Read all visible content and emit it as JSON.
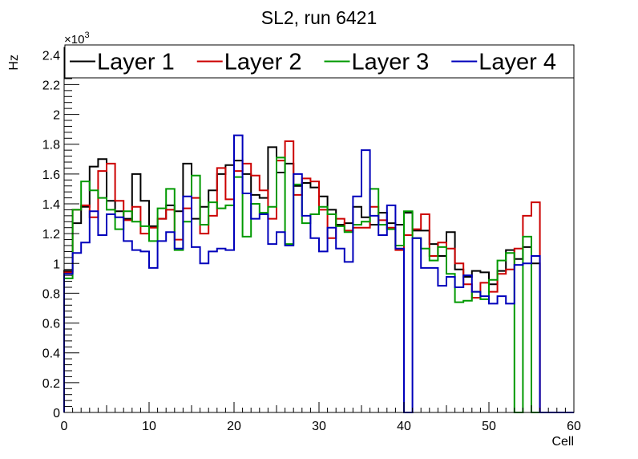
{
  "chart_data": {
    "type": "line",
    "title": "SL2, run 6421",
    "xlabel": "Cell",
    "ylabel": "Hz",
    "y_multiplier_label": "×10",
    "y_multiplier_exp": "3",
    "xlim": [
      0,
      60
    ],
    "ylim": [
      0,
      2.45
    ],
    "x_ticks": [
      0,
      10,
      20,
      30,
      40,
      50,
      60
    ],
    "y_ticks": [
      0,
      0.2,
      0.4,
      0.6,
      0.8,
      1,
      1.2,
      1.4,
      1.6,
      1.8,
      2,
      2.2,
      2.4
    ],
    "bin_start": 0,
    "bin_width": 1,
    "legend_position": "top",
    "series": [
      {
        "name": "Layer 1",
        "color": "#000000",
        "values": [
          0.95,
          1.27,
          1.38,
          1.65,
          1.7,
          1.42,
          1.35,
          1.3,
          1.6,
          1.42,
          1.25,
          1.3,
          1.39,
          1.35,
          1.67,
          1.3,
          1.38,
          1.49,
          1.6,
          1.66,
          1.69,
          1.6,
          1.46,
          1.44,
          1.78,
          1.61,
          1.67,
          1.52,
          1.54,
          1.51,
          1.45,
          1.36,
          1.26,
          1.27,
          1.38,
          1.31,
          1.26,
          1.34,
          1.27,
          1.26,
          1.34,
          1.22,
          1.22,
          1.13,
          1.05,
          1.21,
          0.96,
          0.91,
          0.95,
          0.94,
          0.86,
          0.95,
          1.09,
          1.03,
          1.11,
          1.0,
          0.0,
          0.0,
          0.0,
          0.0
        ]
      },
      {
        "name": "Layer 2",
        "color": "#cc0000",
        "values": [
          0.94,
          1.36,
          1.39,
          1.31,
          1.62,
          1.67,
          1.42,
          1.29,
          1.38,
          1.2,
          1.24,
          1.3,
          1.36,
          1.16,
          1.37,
          1.44,
          1.2,
          1.32,
          1.64,
          1.43,
          1.62,
          1.67,
          1.59,
          1.49,
          1.3,
          1.69,
          1.82,
          1.46,
          1.57,
          1.55,
          1.36,
          1.17,
          1.3,
          1.22,
          1.24,
          1.24,
          1.38,
          1.29,
          1.24,
          1.09,
          1.19,
          1.23,
          1.33,
          1.05,
          1.14,
          1.1,
          1.0,
          0.86,
          0.77,
          0.87,
          0.81,
          0.93,
          0.96,
          1.1,
          1.32,
          1.41,
          0.0,
          0.0,
          0.0,
          0.0
        ]
      },
      {
        "name": "Layer 3",
        "color": "#009900",
        "values": [
          0.9,
          1.36,
          1.55,
          1.49,
          1.44,
          1.36,
          1.23,
          1.35,
          1.28,
          1.25,
          1.15,
          1.37,
          1.5,
          1.09,
          1.28,
          1.59,
          1.26,
          1.41,
          1.37,
          1.39,
          1.58,
          1.18,
          1.4,
          1.34,
          1.38,
          1.71,
          1.13,
          1.53,
          1.27,
          1.33,
          1.38,
          1.33,
          1.25,
          1.21,
          1.26,
          1.28,
          1.5,
          1.26,
          1.23,
          1.12,
          1.35,
          1.17,
          1.1,
          1.02,
          1.11,
          0.93,
          0.74,
          0.75,
          0.81,
          0.76,
          0.89,
          1.02,
          1.07,
          0.0,
          1.18,
          0.0,
          0.0,
          0.0,
          0.0,
          0.0
        ]
      },
      {
        "name": "Layer 4",
        "color": "#0000bb",
        "values": [
          0.93,
          1.07,
          1.14,
          1.35,
          1.19,
          1.33,
          1.31,
          1.15,
          1.09,
          1.08,
          0.97,
          1.15,
          1.21,
          1.1,
          1.45,
          1.11,
          1.0,
          1.08,
          1.1,
          1.09,
          1.86,
          1.47,
          1.3,
          1.33,
          1.13,
          1.21,
          1.12,
          1.6,
          1.32,
          1.17,
          1.08,
          1.24,
          1.1,
          1.01,
          1.45,
          1.76,
          1.32,
          1.19,
          1.39,
          1.1,
          0.0,
          1.17,
          0.97,
          0.97,
          0.85,
          0.91,
          0.84,
          0.92,
          0.81,
          0.78,
          0.73,
          0.78,
          0.73,
          0.99,
          1.0,
          1.05,
          0.0,
          0.0,
          0.0,
          0.0
        ]
      }
    ]
  }
}
